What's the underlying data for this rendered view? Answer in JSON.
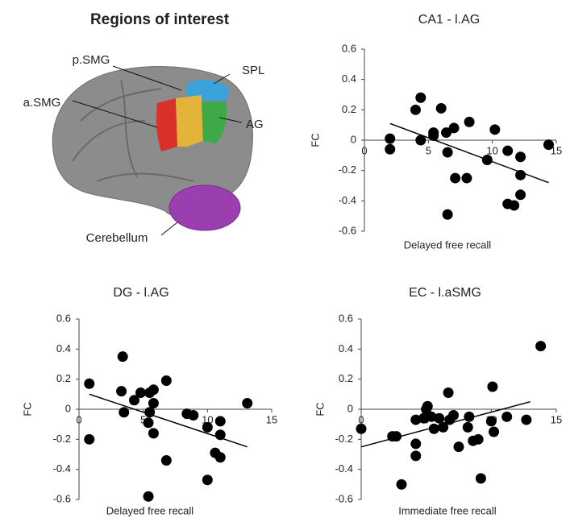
{
  "brain_panel": {
    "title": "Regions of interest",
    "labels": [
      "p.SMG",
      "SPL",
      "a.SMG",
      "AG",
      "Cerebellum"
    ]
  },
  "chart_data": [
    {
      "type": "scatter",
      "title": "CA1 - l.AG",
      "x_label": "Delayed free recall",
      "y_label": "FC",
      "color": "#000000",
      "x": [
        2,
        2,
        4.4,
        4,
        4.4,
        5.4,
        5.4,
        6,
        6.4,
        6.5,
        7,
        7.1,
        6.5,
        8.2,
        8,
        10.2,
        9.6,
        11.2,
        12.2,
        12.2,
        12.2,
        11.2,
        11.7,
        14.4
      ],
      "values": [
        0.01,
        -0.06,
        0.28,
        0.2,
        0,
        0.05,
        0.03,
        0.21,
        0.05,
        -0.08,
        0.08,
        -0.25,
        -0.49,
        0.12,
        -0.25,
        0.07,
        -0.13,
        -0.07,
        -0.11,
        -0.23,
        -0.36,
        -0.42,
        -0.43,
        -0.03
      ],
      "trendline": {
        "x": [
          2,
          14.4
        ],
        "values": [
          0.11,
          -0.28
        ]
      },
      "xlim": [
        0,
        15
      ],
      "ylim": [
        -0.6,
        0.6
      ],
      "xticks": [
        0,
        5,
        10,
        15
      ],
      "yticks": [
        0.6,
        0.4,
        0.2,
        0,
        -0.2,
        -0.4,
        -0.6
      ]
    },
    {
      "type": "scatter",
      "title": "DG - l.AG",
      "x_label": "Delayed free recall",
      "y_label": "FC",
      "color": "#000000",
      "x": [
        0.8,
        0.8,
        3.3,
        3.4,
        3.5,
        4.3,
        4.8,
        5.5,
        5.5,
        5.4,
        5.8,
        5.8,
        5.8,
        6.8,
        6.8,
        5.4,
        8.4,
        8.9,
        10,
        11,
        11,
        10.6,
        11,
        10,
        13.1
      ],
      "values": [
        0.17,
        -0.2,
        0.12,
        0.35,
        -0.02,
        0.06,
        0.11,
        0.11,
        -0.02,
        -0.09,
        -0.16,
        0.04,
        0.13,
        0.19,
        -0.34,
        -0.58,
        -0.03,
        -0.04,
        -0.12,
        -0.08,
        -0.17,
        -0.29,
        -0.32,
        -0.47,
        0.04
      ],
      "trendline": {
        "x": [
          0.8,
          13.1
        ],
        "values": [
          0.1,
          -0.25
        ]
      },
      "xlim": [
        0,
        15
      ],
      "ylim": [
        -0.6,
        0.6
      ],
      "xticks": [
        0,
        5,
        10,
        15
      ],
      "yticks": [
        0.6,
        0.4,
        0.2,
        0,
        -0.2,
        -0.4,
        -0.6
      ]
    },
    {
      "type": "scatter",
      "title": "EC - l.aSMG",
      "x_label": "Immediate free recall",
      "y_label": "FC",
      "color": "#000000",
      "x": [
        0,
        2.4,
        2.7,
        3.1,
        4.2,
        4.2,
        4.2,
        4.8,
        5,
        5.1,
        5.4,
        5.6,
        6,
        6.3,
        6.7,
        6.8,
        7.1,
        7.5,
        8.2,
        8.3,
        8.6,
        9,
        9.2,
        10,
        10.2,
        10.1,
        11.2,
        12.7,
        13.8
      ],
      "values": [
        -0.13,
        -0.18,
        -0.18,
        -0.5,
        -0.23,
        -0.31,
        -0.07,
        -0.06,
        0,
        0.02,
        -0.05,
        -0.13,
        -0.06,
        -0.12,
        0.11,
        -0.07,
        -0.04,
        -0.25,
        -0.12,
        -0.05,
        -0.21,
        -0.2,
        -0.46,
        -0.08,
        -0.15,
        0.15,
        -0.05,
        -0.07,
        0.42
      ],
      "trendline": {
        "x": [
          0,
          13
        ],
        "values": [
          -0.25,
          0.05
        ]
      },
      "xlim": [
        0,
        15
      ],
      "ylim": [
        -0.6,
        0.6
      ],
      "xticks": [
        0,
        5,
        10,
        15
      ],
      "yticks": [
        0.6,
        0.4,
        0.2,
        0,
        -0.2,
        -0.4,
        -0.6
      ]
    }
  ]
}
